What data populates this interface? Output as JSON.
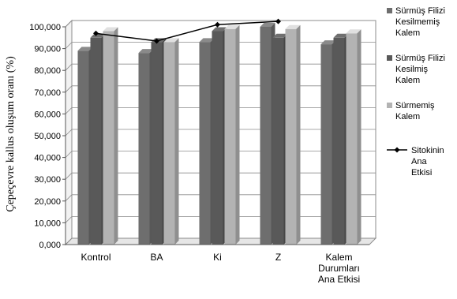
{
  "chart_data": {
    "type": "bar",
    "title": "",
    "xlabel": "",
    "ylabel": "Çepeçevre kallus oluşum oranı (%)",
    "ylim": [
      0,
      100
    ],
    "yticks": [
      "0,000",
      "10,000",
      "20,000",
      "30,000",
      "40,000",
      "50,000",
      "60,000",
      "70,000",
      "80,000",
      "90,000",
      "100,000"
    ],
    "grid": true,
    "legend_position": "right",
    "categories": [
      [
        "Kontrol"
      ],
      [
        "BA"
      ],
      [
        "Ki"
      ],
      [
        "Z"
      ],
      [
        "Kalem",
        "Durumları",
        "Ana Etkisi"
      ]
    ],
    "series": [
      {
        "name": [
          "Sürmüş Filizi",
          "Kesilmemiş",
          "Kalem"
        ],
        "values": [
          89,
          88,
          93,
          100,
          92
        ],
        "color": "#6e6e6e"
      },
      {
        "name": [
          "Sürmüş Filizi",
          "Kesilmiş",
          "Kalem"
        ],
        "values": [
          95,
          93,
          98,
          95,
          95
        ],
        "color": "#595959"
      },
      {
        "name": [
          "Sürmemiş",
          "Kalem"
        ],
        "values": [
          98,
          93,
          99,
          99,
          97
        ],
        "color": "#b3b3b3"
      }
    ],
    "line_series": {
      "name": [
        "Sitokinin",
        "Ana",
        "Etkisi"
      ],
      "values": [
        97,
        93.5,
        101,
        102.5
      ],
      "color": "#000000",
      "marker": "diamond"
    }
  }
}
